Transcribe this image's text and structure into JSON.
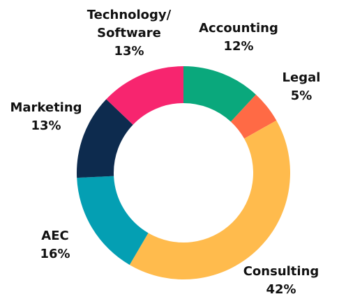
{
  "chart_data": {
    "type": "pie",
    "donut": true,
    "title": "",
    "series": [
      {
        "label_lines": [
          "Accounting"
        ],
        "value_label": "12%",
        "value": 12,
        "color": "#0aa87c"
      },
      {
        "label_lines": [
          "Legal"
        ],
        "value_label": "5%",
        "value": 5,
        "color": "#ff6a45"
      },
      {
        "label_lines": [
          "Consulting"
        ],
        "value_label": "42%",
        "value": 42,
        "color": "#ffbb4d"
      },
      {
        "label_lines": [
          "AEC"
        ],
        "value_label": "16%",
        "value": 16,
        "color": "#049fb3"
      },
      {
        "label_lines": [
          "Marketing"
        ],
        "value_label": "13%",
        "value": 13,
        "color": "#0d2b4e"
      },
      {
        "label_lines": [
          "Technology/",
          "Software"
        ],
        "value_label": "13%",
        "value": 13,
        "color": "#f7256f"
      }
    ],
    "legend": "none (labels placed around the ring)"
  }
}
